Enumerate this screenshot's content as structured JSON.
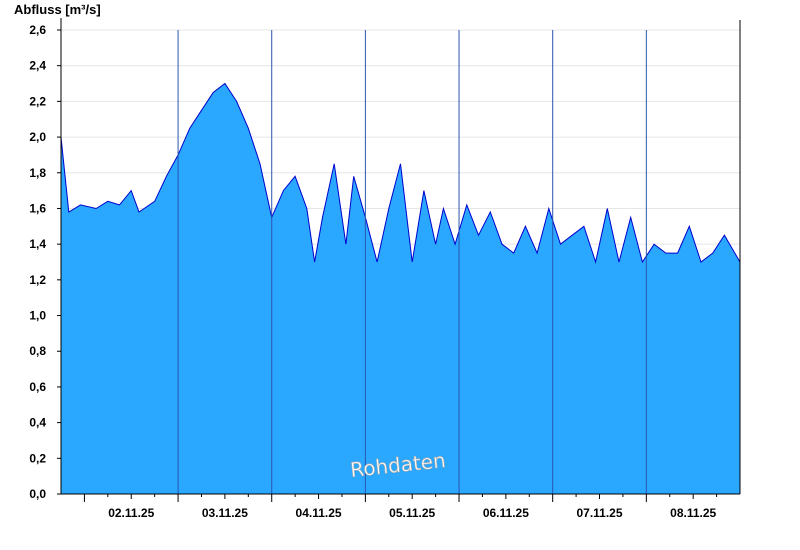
{
  "chart_data": {
    "type": "area",
    "title": "",
    "ylabel": "Abfluss [m³/s]",
    "xlabel": "",
    "ylim": [
      0,
      2.6
    ],
    "yticks": [
      "0,0",
      "0,2",
      "0,4",
      "0,6",
      "0,8",
      "1,0",
      "1,2",
      "1,4",
      "1,6",
      "1,8",
      "2,0",
      "2,2",
      "2,4",
      "2,6"
    ],
    "xlim": [
      "01.11.25 18:00",
      "08.11.25 24:00"
    ],
    "day_labels": [
      "02.11.25",
      "03.11.25",
      "04.11.25",
      "05.11.25",
      "06.11.25",
      "07.11.25",
      "08.11.25"
    ],
    "grid": true,
    "legend": "none",
    "watermark": "Rohdaten",
    "colors": {
      "fill": "#2aa7ff",
      "line": "#0000cc",
      "grid": "#e6e6e6",
      "day_line": "#2b55b0",
      "axis": "#000000"
    },
    "series": [
      {
        "x": [
          "01.11.25 18:00",
          "01.11.25 20:00",
          "01.11.25 23:00",
          "02.11.25 03:00",
          "02.11.25 06:00",
          "02.11.25 09:00",
          "02.11.25 12:00",
          "02.11.25 14:00",
          "02.11.25 18:00",
          "02.11.25 21:00",
          "03.11.25 00:00",
          "03.11.25 03:00",
          "03.11.25 06:00",
          "03.11.25 09:00",
          "03.11.25 12:00",
          "03.11.25 15:00",
          "03.11.25 18:00",
          "03.11.25 21:00",
          "04.11.25 00:00",
          "04.11.25 03:00",
          "04.11.25 06:00",
          "04.11.25 09:00",
          "04.11.25 11:00",
          "04.11.25 13:00",
          "04.11.25 16:00",
          "04.11.25 19:00",
          "04.11.25 21:00",
          "05.11.25 00:00",
          "05.11.25 03:00",
          "05.11.25 06:00",
          "05.11.25 09:00",
          "05.11.25 12:00",
          "05.11.25 15:00",
          "05.11.25 18:00",
          "05.11.25 20:00",
          "05.11.25 23:00",
          "06.11.25 02:00",
          "06.11.25 05:00",
          "06.11.25 08:00",
          "06.11.25 11:00",
          "06.11.25 14:00",
          "06.11.25 17:00",
          "06.11.25 20:00",
          "06.11.25 23:00",
          "07.11.25 02:00",
          "07.11.25 05:00",
          "07.11.25 08:00",
          "07.11.25 11:00",
          "07.11.25 14:00",
          "07.11.25 17:00",
          "07.11.25 20:00",
          "07.11.25 23:00",
          "08.11.25 02:00",
          "08.11.25 05:00",
          "08.11.25 08:00",
          "08.11.25 11:00",
          "08.11.25 14:00",
          "08.11.25 17:00",
          "08.11.25 20:00",
          "08.11.25 24:00"
        ],
        "y": [
          2.0,
          1.58,
          1.62,
          1.6,
          1.64,
          1.62,
          1.7,
          1.58,
          1.64,
          1.78,
          1.9,
          2.05,
          2.15,
          2.25,
          2.3,
          2.2,
          2.05,
          1.85,
          1.55,
          1.7,
          1.78,
          1.6,
          1.3,
          1.55,
          1.85,
          1.4,
          1.78,
          1.55,
          1.3,
          1.6,
          1.85,
          1.3,
          1.7,
          1.4,
          1.6,
          1.4,
          1.62,
          1.45,
          1.58,
          1.4,
          1.35,
          1.5,
          1.35,
          1.6,
          1.4,
          1.45,
          1.5,
          1.3,
          1.6,
          1.3,
          1.55,
          1.3,
          1.4,
          1.35,
          1.35,
          1.5,
          1.3,
          1.35,
          1.45,
          1.3
        ]
      }
    ]
  }
}
